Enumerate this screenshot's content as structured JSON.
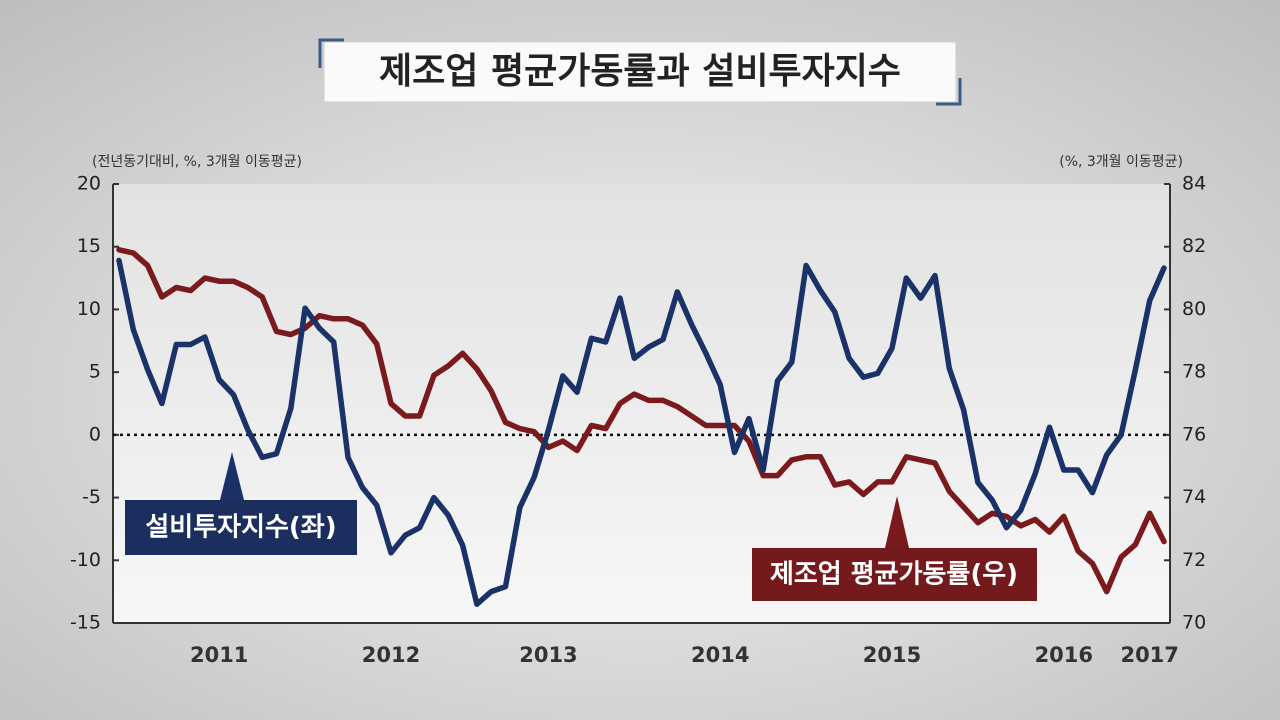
{
  "chart_data": {
    "type": "line",
    "title": "제조업 평균가동률과 설비투자지수",
    "y_label": "(전년동기대비, %, 3개월 이동평균)",
    "y2_label": "(%, 3개월 이동평균)",
    "categories": [
      null,
      null,
      null,
      null,
      null,
      null,
      null,
      "2011",
      null,
      null,
      null,
      null,
      null,
      null,
      null,
      null,
      null,
      null,
      null,
      "2012",
      null,
      null,
      null,
      null,
      null,
      null,
      null,
      null,
      null,
      null,
      "2013",
      null,
      null,
      null,
      null,
      null,
      null,
      null,
      null,
      null,
      null,
      null,
      "2014",
      null,
      null,
      null,
      null,
      null,
      null,
      null,
      null,
      null,
      null,
      null,
      "2015",
      null,
      null,
      null,
      null,
      null,
      null,
      null,
      null,
      null,
      null,
      null,
      "2016",
      null,
      null,
      null,
      null,
      null,
      "2017",
      null
    ],
    "ylim": [
      -15,
      20
    ],
    "yticks": [
      -15,
      -10,
      -5,
      0,
      5,
      10,
      15,
      20
    ],
    "y2lim": [
      70,
      84
    ],
    "y2ticks": [
      70,
      72,
      74,
      76,
      78,
      80,
      82,
      84
    ],
    "reference_line": 0,
    "series": [
      {
        "name": "설비투자지수(좌)",
        "color": "#1b3268",
        "values": [
          13.9,
          8.4,
          5.2,
          2.5,
          7.2,
          7.2,
          7.8,
          4.4,
          3.2,
          0.4,
          -1.8,
          -1.5,
          2.1,
          10.1,
          8.5,
          7.4,
          -1.8,
          -4.2,
          -5.6,
          -9.4,
          -8,
          -7.4,
          -5,
          -6.4,
          -8.8,
          -13.5,
          -12.5,
          -12.1,
          -5.8,
          -3.4,
          0.4,
          4.7,
          3.4,
          7.7,
          7.4,
          10.9,
          6.1,
          7,
          7.6,
          11.4,
          8.8,
          6.5,
          4,
          -1.4,
          1.3,
          -2.8,
          4.3,
          5.8,
          13.5,
          11.5,
          9.8,
          6.1,
          4.6,
          4.9,
          6.9,
          12.5,
          10.9,
          12.7,
          5.3,
          2,
          -3.8,
          -5.2,
          -7.4,
          -6,
          -3.1,
          0.6,
          -2.8,
          -2.8,
          -4.6,
          -1.6,
          0,
          5.2,
          10.7,
          13.3
        ]
      },
      {
        "name": "제조업 평균가동률(우)",
        "color": "#7a1a1d",
        "axis": "y2",
        "values": [
          81.9,
          81.8,
          81.4,
          80.4,
          80.7,
          80.6,
          81.0,
          80.9,
          80.9,
          80.7,
          80.4,
          79.3,
          79.2,
          79.4,
          79.8,
          79.7,
          79.7,
          79.5,
          78.9,
          77.0,
          76.6,
          76.6,
          77.9,
          78.2,
          78.6,
          78.1,
          77.4,
          76.4,
          76.2,
          76.1,
          75.6,
          75.8,
          75.5,
          76.3,
          76.2,
          77.0,
          77.3,
          77.1,
          77.1,
          76.9,
          76.6,
          76.3,
          76.3,
          76.3,
          75.8,
          74.7,
          74.7,
          75.2,
          75.3,
          75.3,
          74.4,
          74.5,
          74.1,
          74.5,
          74.5,
          75.3,
          75.2,
          75.1,
          74.2,
          73.7,
          73.2,
          73.5,
          73.4,
          73.1,
          73.3,
          72.9,
          73.4,
          72.3,
          71.9,
          71.0,
          72.1,
          72.5,
          73.5,
          72.6
        ]
      }
    ]
  }
}
